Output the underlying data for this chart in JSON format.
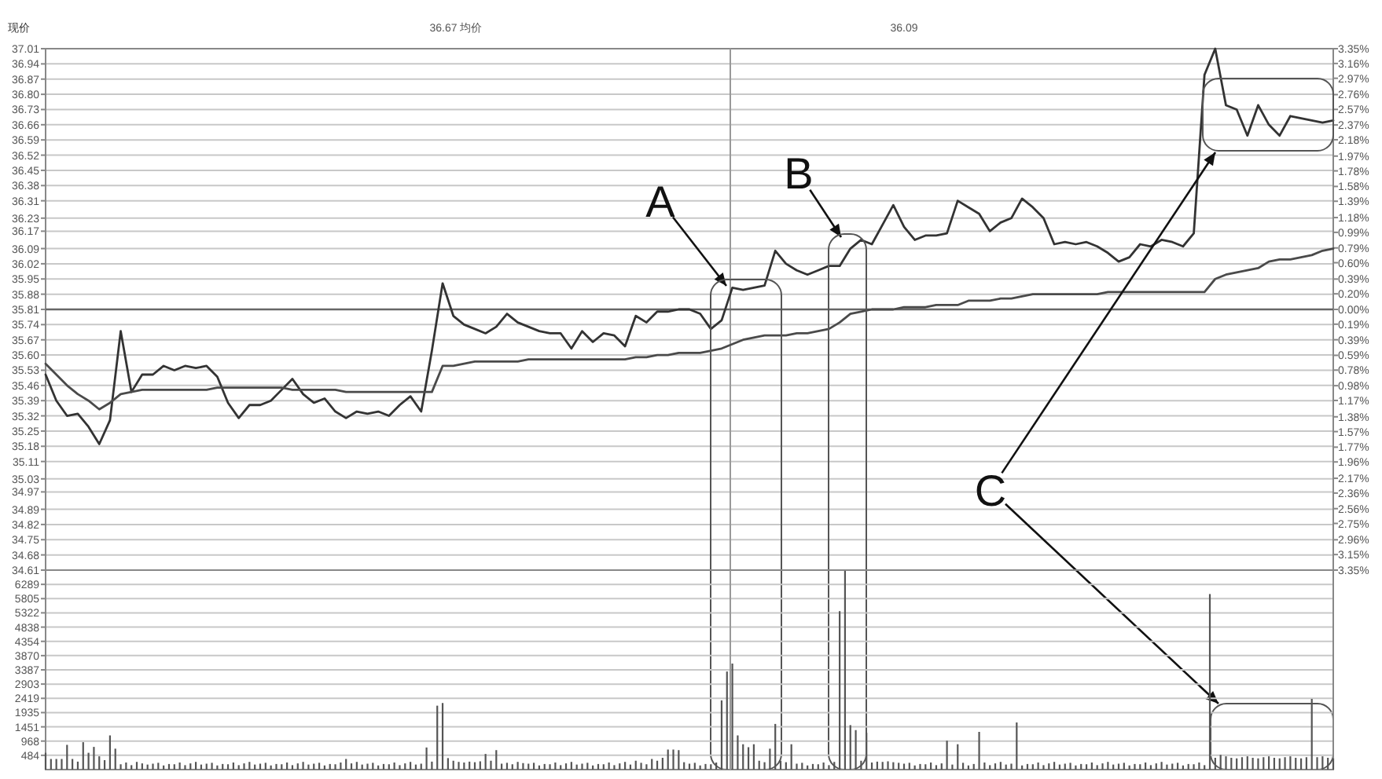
{
  "chart_data": [
    {
      "type": "line",
      "ylabel": "现价",
      "annotations": [
        "36.67 均价",
        "36.09",
        "A",
        "B",
        "C"
      ],
      "categories": [
        null,
        null,
        null,
        null,
        null,
        null,
        null,
        null,
        null,
        null,
        null,
        null,
        null,
        null,
        null,
        null,
        null,
        null,
        null,
        null,
        null,
        null,
        null,
        null,
        null,
        null,
        null,
        null,
        null,
        null,
        null,
        null,
        null,
        null,
        null,
        null,
        null,
        null,
        null,
        null,
        null,
        null,
        null,
        null,
        null,
        null,
        null,
        null,
        null,
        null,
        null,
        null,
        null,
        null,
        null,
        null,
        null,
        null,
        null,
        null,
        null,
        null,
        null,
        null,
        null,
        null,
        null,
        null,
        null,
        null,
        null,
        null,
        null,
        null,
        null,
        null,
        null,
        null,
        null,
        null,
        null,
        null,
        null,
        null,
        null,
        null,
        null,
        null,
        null,
        null,
        null,
        null,
        null,
        null,
        null,
        null,
        null,
        null,
        null,
        null,
        null,
        null,
        null,
        null,
        null,
        null,
        null,
        null,
        null,
        null,
        null,
        null,
        null,
        null,
        null,
        null,
        null,
        null,
        null,
        null,
        null
      ],
      "ylim": [
        34.61,
        37.01
      ],
      "yticks": [
        37.01,
        36.94,
        36.87,
        {
          "value": 36.8,
          "label": "36.80"
        },
        36.73,
        36.66,
        36.59,
        36.52,
        36.45,
        36.38,
        36.31,
        36.23,
        36.17,
        36.09,
        36.02,
        35.95,
        35.88,
        35.81,
        35.74,
        35.67,
        {
          "value": 35.6,
          "label": "35.60"
        },
        35.53,
        35.46,
        35.39,
        35.32,
        35.25,
        35.18,
        35.11,
        35.03,
        34.97,
        34.89,
        34.82,
        34.75,
        34.68,
        34.61
      ],
      "y2lim": [
        -3.35,
        3.35
      ],
      "y2ticks": [
        {
          "value": 3.35,
          "label": "3.35%"
        },
        {
          "value": 3.16,
          "label": "3.16%"
        },
        {
          "value": 2.97,
          "label": "2.97%"
        },
        {
          "value": 2.76,
          "label": "2.76%"
        },
        {
          "value": 2.57,
          "label": "2.57%"
        },
        {
          "value": 2.37,
          "label": "2.37%"
        },
        {
          "value": 2.18,
          "label": "2.18%"
        },
        {
          "value": 1.97,
          "label": "1.97%"
        },
        {
          "value": 1.78,
          "label": "1.78%"
        },
        {
          "value": 1.58,
          "label": "1.58%"
        },
        {
          "value": 1.39,
          "label": "1.39%"
        },
        {
          "value": 1.18,
          "label": "1.18%"
        },
        {
          "value": 0.99,
          "label": "0.99%"
        },
        {
          "value": 0.79,
          "label": "0.79%"
        },
        {
          "value": 0.6,
          "label": "0.60%"
        },
        {
          "value": 0.39,
          "label": "0.39%"
        },
        {
          "value": 0.2,
          "label": "0.20%"
        },
        {
          "value": 0,
          "label": "0.00%"
        },
        {
          "value": -0.19,
          "label": "0.19%"
        },
        {
          "value": -0.39,
          "label": "0.39%"
        },
        {
          "value": -0.59,
          "label": "0.59%"
        },
        {
          "value": -0.78,
          "label": "0.78%"
        },
        {
          "value": -0.98,
          "label": "0.98%"
        },
        {
          "value": -1.17,
          "label": "1.17%"
        },
        {
          "value": -1.38,
          "label": "1.38%"
        },
        {
          "value": -1.57,
          "label": "1.57%"
        },
        {
          "value": -1.77,
          "label": "1.77%"
        },
        {
          "value": -1.96,
          "label": "1.96%"
        },
        {
          "value": -2.17,
          "label": "2.17%"
        },
        {
          "value": -2.36,
          "label": "2.36%"
        },
        {
          "value": -2.56,
          "label": "2.56%"
        },
        {
          "value": -2.75,
          "label": "2.75%"
        },
        {
          "value": -2.96,
          "label": "2.96%"
        },
        {
          "value": -3.15,
          "label": "3.15%"
        },
        {
          "value": -3.35,
          "label": "3.35%"
        }
      ],
      "grid": "y",
      "ref_lines": [
        {
          "axis": "y",
          "value": 35.81,
          "color": "#666666"
        }
      ],
      "series": [
        {
          "color": "#333333",
          "values": [
            35.51,
            35.39,
            35.32,
            35.33,
            35.27,
            35.19,
            35.3,
            35.71,
            35.43,
            35.51,
            35.51,
            35.55,
            35.53,
            35.55,
            35.54,
            35.55,
            35.5,
            35.38,
            35.31,
            35.37,
            35.37,
            35.39,
            35.44,
            35.49,
            35.42,
            35.38,
            35.4,
            35.34,
            35.31,
            35.34,
            35.33,
            35.34,
            35.32,
            35.37,
            35.41,
            35.34,
            35.62,
            35.93,
            35.78,
            35.74,
            35.72,
            35.7,
            35.73,
            35.79,
            35.75,
            35.73,
            35.71,
            35.7,
            35.7,
            35.63,
            35.71,
            35.66,
            35.7,
            35.69,
            35.64,
            35.78,
            35.75,
            35.8,
            35.8,
            35.81,
            35.81,
            35.79,
            35.72,
            35.76,
            35.91,
            35.9,
            35.91,
            35.92,
            36.08,
            36.02,
            35.99,
            35.97,
            35.99,
            36.01,
            36.01,
            36.09,
            36.13,
            36.11,
            36.2,
            36.29,
            36.19,
            36.13,
            36.15,
            36.15,
            36.16,
            36.31,
            36.28,
            36.25,
            36.17,
            36.21,
            36.23,
            36.32,
            36.28,
            36.23,
            36.11,
            36.12,
            36.11,
            36.12,
            36.1,
            36.07,
            36.03,
            36.05,
            36.11,
            36.1,
            36.13,
            36.12,
            36.1,
            36.16,
            36.89,
            37.01,
            36.75,
            36.73,
            36.61,
            36.75,
            36.66,
            36.61,
            36.7,
            36.69,
            36.68,
            36.67,
            36.68
          ]
        },
        {
          "color": "#4a4a4a",
          "values": [
            35.56,
            35.51,
            35.46,
            35.42,
            35.39,
            35.35,
            35.38,
            35.42,
            35.43,
            35.44,
            35.44,
            35.44,
            35.44,
            35.44,
            35.44,
            35.44,
            35.45,
            35.45,
            35.45,
            35.45,
            35.45,
            35.45,
            35.45,
            35.44,
            35.44,
            35.44,
            35.44,
            35.44,
            35.43,
            35.43,
            35.43,
            35.43,
            35.43,
            35.43,
            35.43,
            35.43,
            35.43,
            35.55,
            35.55,
            35.56,
            35.57,
            35.57,
            35.57,
            35.57,
            35.57,
            35.58,
            35.58,
            35.58,
            35.58,
            35.58,
            35.58,
            35.58,
            35.58,
            35.58,
            35.58,
            35.59,
            35.59,
            35.6,
            35.6,
            35.61,
            35.61,
            35.61,
            35.62,
            35.63,
            35.65,
            35.67,
            35.68,
            35.69,
            35.69,
            35.69,
            35.7,
            35.7,
            35.71,
            35.72,
            35.75,
            35.79,
            35.8,
            35.81,
            35.81,
            35.81,
            35.82,
            35.82,
            35.82,
            35.83,
            35.83,
            35.83,
            35.85,
            35.85,
            35.85,
            35.86,
            35.86,
            35.87,
            35.88,
            35.88,
            35.88,
            35.88,
            35.88,
            35.88,
            35.88,
            35.89,
            35.89,
            35.89,
            35.89,
            35.89,
            35.89,
            35.89,
            35.89,
            35.89,
            35.89,
            35.95,
            35.97,
            35.98,
            35.99,
            36.0,
            36.03,
            36.04,
            36.04,
            36.05,
            36.06,
            36.08,
            36.09
          ]
        }
      ]
    },
    {
      "type": "bar",
      "tick_labels": "y",
      "ylim": [
        0,
        6773
      ],
      "yticks": [
        6289,
        5805,
        5322,
        4838,
        4354,
        3870,
        3387,
        2903,
        2419,
        1935,
        1451,
        968,
        484
      ],
      "grid": "y",
      "categories": [
        null,
        null,
        null,
        null,
        null,
        null,
        null,
        null,
        null,
        null,
        null,
        null,
        null,
        null,
        null,
        null,
        null,
        null,
        null,
        null,
        null,
        null,
        null,
        null,
        null,
        null,
        null,
        null,
        null,
        null,
        null,
        null,
        null,
        null,
        null,
        null,
        null,
        null,
        null,
        null,
        null,
        null,
        null,
        null,
        null,
        null,
        null,
        null,
        null,
        null,
        null,
        null,
        null,
        null,
        null,
        null,
        null,
        null,
        null,
        null,
        null,
        null,
        null,
        null,
        null,
        null,
        null,
        null,
        null,
        null,
        null,
        null,
        null,
        null,
        null,
        null,
        null,
        null,
        null,
        null,
        null,
        null,
        null,
        null,
        null,
        null,
        null,
        null,
        null,
        null,
        null,
        null,
        null,
        null,
        null,
        null,
        null,
        null,
        null,
        null,
        null,
        null,
        null,
        null,
        null,
        null,
        null,
        null,
        null,
        null,
        null,
        null,
        null,
        null,
        null,
        null,
        null,
        null,
        null,
        null,
        null,
        null,
        null,
        null,
        null,
        null,
        null,
        null,
        null,
        null,
        null,
        null,
        null,
        null,
        null,
        null,
        null,
        null,
        null,
        null,
        null,
        null,
        null,
        null,
        null,
        null,
        null,
        null,
        null,
        null,
        null,
        null,
        null,
        null,
        null,
        null,
        null,
        null,
        null,
        null,
        null,
        null,
        null,
        null,
        null,
        null,
        null,
        null,
        null,
        null,
        null,
        null,
        null,
        null,
        null,
        null,
        null,
        null,
        null,
        null,
        null,
        null,
        null,
        null,
        null,
        null,
        null,
        null,
        null,
        null,
        null,
        null,
        null,
        null,
        null,
        null,
        null,
        null,
        null,
        null,
        null,
        null,
        null,
        null,
        null,
        null,
        null,
        null,
        null,
        null,
        null,
        null,
        null,
        null,
        null,
        null,
        null,
        null,
        null,
        null,
        null,
        null,
        null,
        null,
        null,
        null,
        null,
        null,
        null,
        null,
        null,
        null,
        null,
        null,
        null,
        null,
        null,
        null,
        null,
        null,
        null
      ],
      "series": [
        {
          "color": "#555555",
          "values": [
            570,
            360,
            360,
            360,
            840,
            360,
            270,
            930,
            570,
            770,
            450,
            320,
            1160,
            710,
            180,
            240,
            150,
            260,
            210,
            170,
            200,
            230,
            140,
            190,
            180,
            240,
            150,
            210,
            260,
            170,
            200,
            230,
            140,
            190,
            180,
            240,
            150,
            210,
            260,
            170,
            200,
            230,
            140,
            190,
            180,
            240,
            150,
            210,
            260,
            170,
            200,
            230,
            140,
            190,
            180,
            240,
            360,
            210,
            260,
            170,
            200,
            230,
            140,
            190,
            180,
            240,
            150,
            210,
            260,
            170,
            200,
            750,
            270,
            2170,
            2260,
            390,
            300,
            260,
            240,
            270,
            250,
            280,
            530,
            300,
            660,
            200,
            230,
            180,
            260,
            220,
            200,
            230,
            140,
            190,
            180,
            240,
            150,
            210,
            260,
            170,
            200,
            230,
            140,
            190,
            180,
            240,
            150,
            210,
            260,
            170,
            300,
            230,
            180,
            360,
            300,
            400,
            680,
            680,
            660,
            250,
            200,
            230,
            140,
            190,
            180,
            240,
            2350,
            3330,
            3600,
            1160,
            860,
            760,
            860,
            300,
            250,
            710,
            1550,
            300,
            250,
            860,
            200,
            230,
            140,
            190,
            180,
            240,
            150,
            260,
            5380,
            6750,
            1510,
            1340,
            300,
            1250,
            240,
            270,
            260,
            280,
            250,
            230,
            200,
            230,
            140,
            190,
            180,
            240,
            150,
            210,
            980,
            170,
            860,
            230,
            140,
            190,
            1280,
            240,
            150,
            210,
            260,
            170,
            200,
            1600,
            140,
            190,
            180,
            240,
            150,
            210,
            260,
            170,
            200,
            230,
            140,
            190,
            180,
            240,
            150,
            210,
            260,
            170,
            200,
            230,
            140,
            190,
            180,
            240,
            150,
            210,
            260,
            170,
            200,
            230,
            140,
            190,
            180,
            240,
            150,
            5960,
            400,
            500,
            450,
            400,
            380,
            420,
            450,
            400,
            380,
            420,
            450,
            400,
            380,
            420,
            450,
            400,
            380,
            420,
            2400,
            420,
            450,
            400,
            380
          ]
        }
      ]
    }
  ]
}
